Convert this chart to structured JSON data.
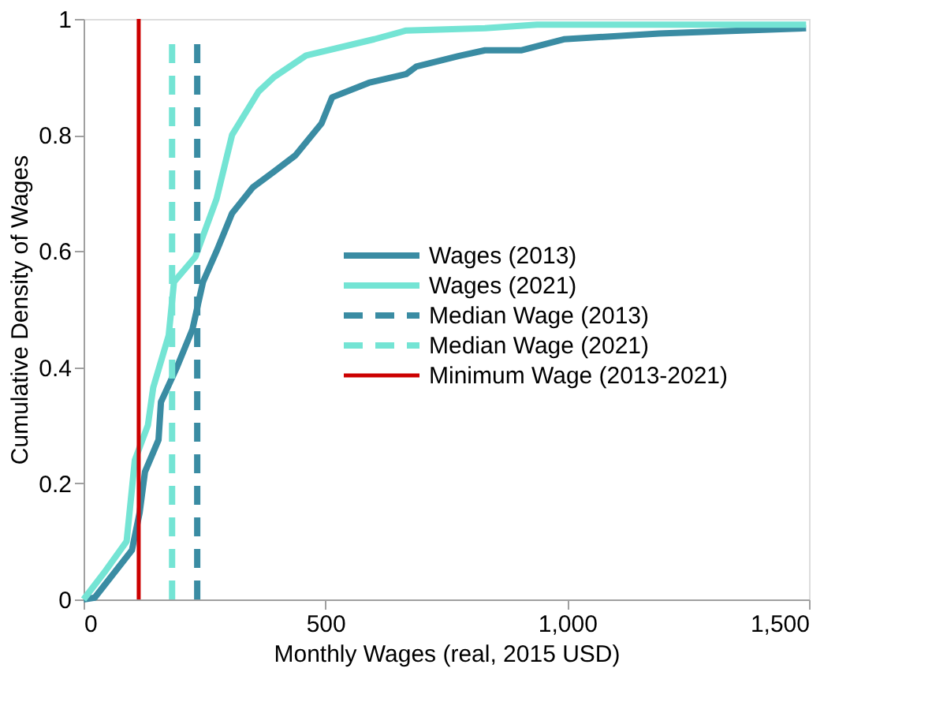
{
  "chart_data": {
    "type": "line",
    "xlabel": "Monthly Wages (real, 2015 USD)",
    "ylabel": "Cumulative Density of Wages",
    "xlim": [
      0,
      1500
    ],
    "xticks": [
      0,
      500,
      {
        "value": 1000,
        "label": "1,000"
      },
      {
        "value": 1500,
        "label": "1,500"
      }
    ],
    "ylim": [
      0,
      1
    ],
    "yticks": [
      0,
      0.2,
      0.4,
      0.6,
      0.8,
      1
    ],
    "grid": false,
    "legend": "right",
    "line_style": "solid",
    "marker": "none",
    "series": [
      {
        "name": "Wages (2013)",
        "color": "#3a8ca3",
        "x": [
          0,
          23,
          100,
          116,
          127,
          155,
          160,
          193,
          225,
          247,
          275,
          307,
          350,
          394,
          438,
          492,
          514,
          590,
          667,
          688,
          775,
          830,
          906,
          993,
          1190,
          1494
        ],
        "values": [
          0,
          0.003,
          0.085,
          0.15,
          0.22,
          0.275,
          0.34,
          0.4,
          0.465,
          0.547,
          0.6,
          0.665,
          0.71,
          0.737,
          0.765,
          0.82,
          0.865,
          0.89,
          0.905,
          0.918,
          0.936,
          0.946,
          0.946,
          0.965,
          0.975,
          0.984
        ]
      },
      {
        "name": "Wages (2021)",
        "color": "#74e4d4",
        "x": [
          0,
          46,
          89,
          106,
          133,
          144,
          176,
          187,
          231,
          275,
          307,
          362,
          394,
          460,
          601,
          667,
          830,
          938,
          1494
        ],
        "values": [
          0,
          0.05,
          0.1,
          0.24,
          0.3,
          0.365,
          0.455,
          0.547,
          0.59,
          0.69,
          0.8,
          0.875,
          0.9,
          0.937,
          0.965,
          0.98,
          0.984,
          0.99,
          0.99
        ]
      },
      {
        "name": "Median Wage (2013)",
        "color": "#3a8ca3",
        "line_style": "dashed",
        "x": [
          235,
          235
        ],
        "values": [
          0,
          0.96
        ]
      },
      {
        "name": "Median Wage (2021)",
        "color": "#74e4d4",
        "line_style": "dashed",
        "x": [
          183,
          183
        ],
        "values": [
          0,
          0.96
        ]
      },
      {
        "name": "Minimum Wage (2013-2021)",
        "color": "#cc0000",
        "x": [
          114,
          114
        ],
        "values": [
          0,
          1
        ]
      }
    ]
  }
}
